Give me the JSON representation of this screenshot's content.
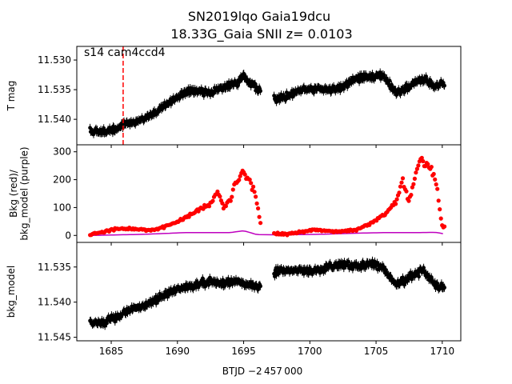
{
  "figure": {
    "title_line1": "SN2019lqo  Gaia19dcu",
    "title_line2": "18.33G_Gaia SNII z= 0.0103",
    "xlabel": "BTJD −2 457 000",
    "annotation": "s14 cam4ccd4"
  },
  "chart_data": [
    {
      "type": "scatter",
      "panel": "top",
      "ylabel": "T mag",
      "xlim": [
        1682.4,
        1711.4
      ],
      "ylim": [
        11.5277,
        11.5443
      ],
      "y_inverted": true,
      "yticks": [
        11.53,
        11.535,
        11.54
      ],
      "ytick_labels": [
        "11.530",
        "11.535",
        "11.540"
      ],
      "marker_color": "#000000",
      "vline": {
        "x": 1685.9,
        "style": "dashed",
        "color": "#ff0000"
      },
      "series": [
        {
          "x": [
            1683.5,
            1684.5,
            1685.5,
            1686.5,
            1687.5,
            1688.5,
            1689.5,
            1690.5,
            1691.5,
            1692.5,
            1693.5,
            1694.5,
            1695.0,
            1696.0,
            1697.5,
            1698.5,
            1699.5,
            1700.5,
            1701.5,
            1702.5,
            1703.5,
            1704.5,
            1705.5,
            1706.5,
            1707.5,
            1708.5,
            1709.5,
            1710.0
          ],
          "y": [
            11.542,
            11.542,
            11.5415,
            11.5405,
            11.54,
            11.5385,
            11.537,
            11.5355,
            11.535,
            11.5355,
            11.5345,
            11.534,
            11.5325,
            11.535,
            11.5365,
            11.536,
            11.535,
            11.535,
            11.535,
            11.5345,
            11.533,
            11.533,
            11.5325,
            11.5355,
            11.5345,
            11.533,
            11.5345,
            11.534
          ]
        }
      ]
    },
    {
      "type": "scatter",
      "panel": "middle",
      "ylabel": "Bkg (red)/\nbkg_model (purple)",
      "xlim": [
        1682.4,
        1711.4
      ],
      "ylim": [
        -25,
        325
      ],
      "yticks": [
        0,
        100,
        200,
        300
      ],
      "ytick_labels": [
        "0",
        "100",
        "200",
        "300"
      ],
      "series": [
        {
          "name": "Bkg",
          "color": "#ff0000",
          "x": [
            1683.5,
            1684.5,
            1685.5,
            1686.5,
            1687.5,
            1688.5,
            1689.5,
            1690.5,
            1691.5,
            1692.5,
            1693.0,
            1693.5,
            1694.0,
            1694.5,
            1695.0,
            1695.5,
            1696.0,
            1696.4,
            1697.5,
            1698.5,
            1699.5,
            1700.5,
            1701.5,
            1702.5,
            1703.5,
            1704.5,
            1705.5,
            1706.5,
            1707.0,
            1707.5,
            1708.0,
            1708.5,
            1709.0,
            1709.5,
            1710.0
          ],
          "y": [
            5,
            15,
            25,
            25,
            20,
            20,
            40,
            60,
            90,
            110,
            160,
            100,
            130,
            200,
            230,
            200,
            120,
            10,
            5,
            5,
            15,
            20,
            15,
            15,
            20,
            40,
            70,
            120,
            200,
            120,
            230,
            280,
            250,
            200,
            30
          ]
        },
        {
          "name": "bkg_model",
          "color": "#bf00bf",
          "x": [
            1683.5,
            1685.5,
            1687.5,
            1689.5,
            1690.5,
            1692.5,
            1694.0,
            1695.0,
            1696.0,
            1697.5,
            1699.5,
            1701.5,
            1703.5,
            1705.5,
            1707.5,
            1709.5,
            1710.2
          ],
          "y": [
            0,
            2,
            4,
            8,
            10,
            10,
            10,
            17,
            3,
            2,
            3,
            5,
            8,
            10,
            10,
            11,
            5
          ]
        }
      ]
    },
    {
      "type": "scatter",
      "panel": "bottom",
      "ylabel": "bkg_model",
      "xlim": [
        1682.4,
        1711.4
      ],
      "ylim": [
        11.5315,
        11.5455
      ],
      "y_inverted": true,
      "yticks": [
        11.535,
        11.54,
        11.545
      ],
      "ytick_labels": [
        "11.535",
        "11.540",
        "11.545"
      ],
      "xticks": [
        1685,
        1690,
        1695,
        1700,
        1705,
        1710
      ],
      "xtick_labels": [
        "1685",
        "1690",
        "1695",
        "1700",
        "1705",
        "1710"
      ],
      "marker_color": "#000000",
      "series": [
        {
          "x": [
            1683.5,
            1684.5,
            1685.5,
            1686.5,
            1687.5,
            1688.5,
            1689.5,
            1690.5,
            1691.5,
            1692.5,
            1693.5,
            1694.5,
            1695.5,
            1696.0,
            1697.5,
            1698.5,
            1699.5,
            1700.5,
            1701.5,
            1702.5,
            1703.5,
            1704.5,
            1705.5,
            1706.5,
            1707.5,
            1708.5,
            1709.5,
            1710.0
          ],
          "y": [
            11.543,
            11.543,
            11.542,
            11.541,
            11.5405,
            11.5395,
            11.5385,
            11.538,
            11.5375,
            11.537,
            11.5375,
            11.537,
            11.5375,
            11.538,
            11.5355,
            11.5355,
            11.5355,
            11.5355,
            11.535,
            11.5345,
            11.535,
            11.5345,
            11.535,
            11.5375,
            11.5365,
            11.5355,
            11.5375,
            11.538
          ]
        }
      ]
    }
  ]
}
